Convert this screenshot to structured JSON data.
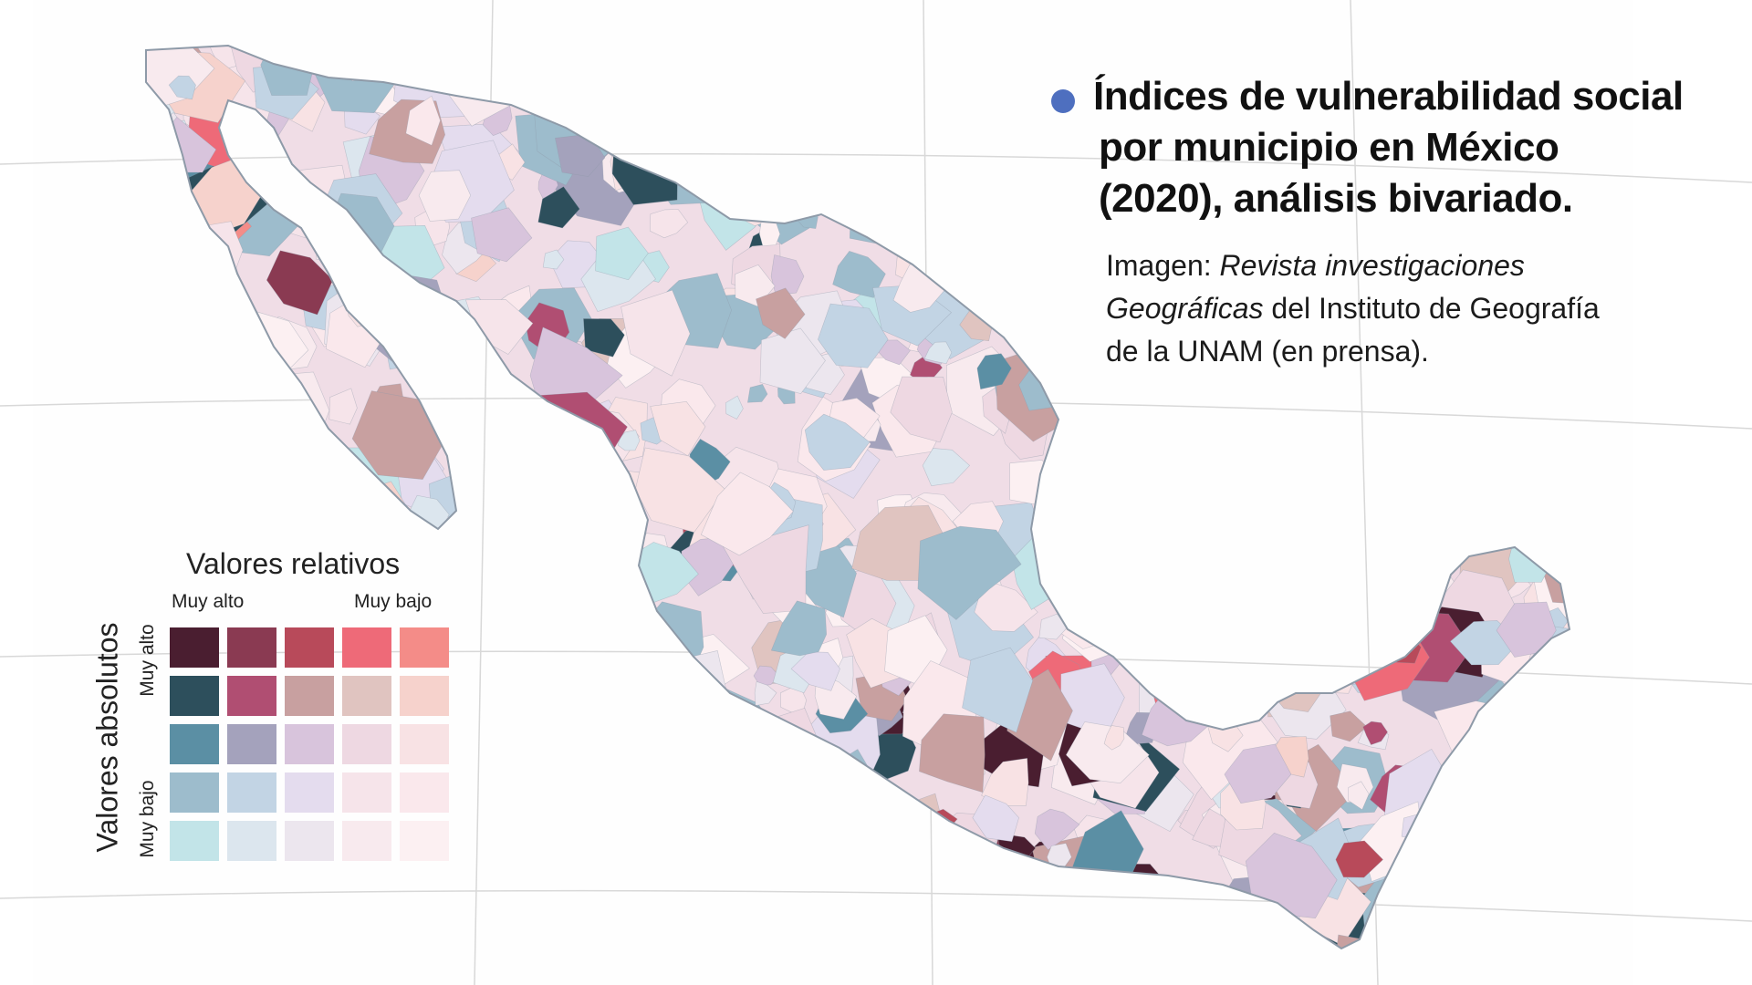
{
  "title": {
    "bullet_color": "#4e6fbf",
    "lines": [
      "Índices de vulnerabilidad social",
      "por municipio en México",
      "(2020), análisis bivariado."
    ]
  },
  "credit": {
    "prefix": "Imagen: ",
    "journal_italic_1": "Revista investigaciones",
    "journal_italic_2": "Geográficas",
    "rest_2": " del Instituto de Geografía",
    "line_3": "de la UNAM (en prensa)."
  },
  "legend": {
    "column_axis_title": "Valores relativos",
    "column_high_label": "Muy alto",
    "column_low_label": "Muy bajo",
    "row_axis_title": "Valores absolutos",
    "row_high_label": "Muy alto",
    "row_low_label": "Muy bajo",
    "grid_colors": [
      [
        "#4a1e30",
        "#8a3a52",
        "#b84a5a",
        "#ee6a78",
        "#f48c88"
      ],
      [
        "#2d4f5c",
        "#b04e72",
        "#c8a0a0",
        "#e0c4c0",
        "#f6d2cc"
      ],
      [
        "#5b8fa4",
        "#a4a2bc",
        "#d8c4dc",
        "#eed8e2",
        "#f8e2e4"
      ],
      [
        "#9dbccc",
        "#c2d4e4",
        "#e4dcee",
        "#f6e4ea",
        "#fae8ec"
      ],
      [
        "#c2e4e8",
        "#dce6ee",
        "#ece6ee",
        "#f8eaee",
        "#fcf0f2"
      ]
    ]
  },
  "map": {
    "land_base_color": "#f0dde6",
    "border_color": "#8e9aa8",
    "graticule_color": "#d8d8d8",
    "background_color": "#ffffff"
  }
}
